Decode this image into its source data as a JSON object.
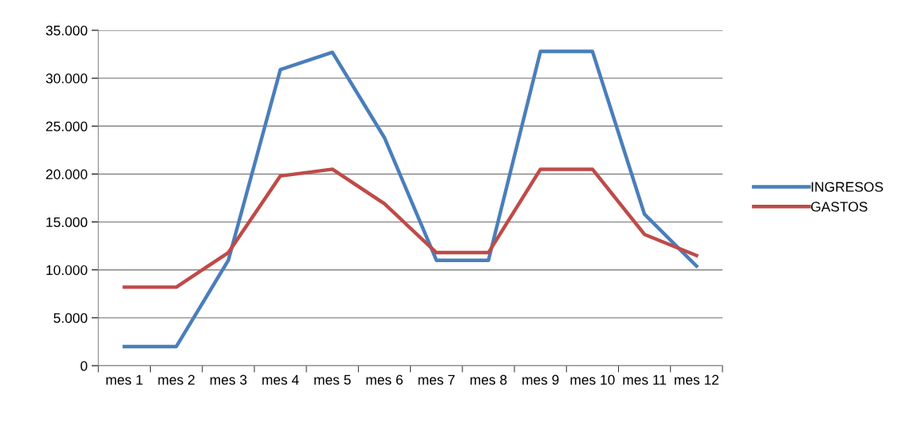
{
  "chart_data": {
    "type": "line",
    "categories": [
      "mes 1",
      "mes 2",
      "mes 3",
      "mes 4",
      "mes 5",
      "mes 6",
      "mes 7",
      "mes 8",
      "mes 9",
      "mes 10",
      "mes 11",
      "mes 12"
    ],
    "series": [
      {
        "name": "INGRESOS",
        "color": "#4a7ebb",
        "values": [
          2000,
          2000,
          11000,
          30900,
          32700,
          23800,
          11000,
          11000,
          32800,
          32800,
          15800,
          10400
        ]
      },
      {
        "name": "GASTOS",
        "color": "#be4b48",
        "values": [
          8200,
          8200,
          11800,
          19800,
          20500,
          16900,
          11800,
          11800,
          20500,
          20500,
          13700,
          11500
        ]
      }
    ],
    "ylim": [
      0,
      35000
    ],
    "yticks": [
      {
        "value": 0,
        "label": "0"
      },
      {
        "value": 5000,
        "label": "5.000"
      },
      {
        "value": 10000,
        "label": "10.000"
      },
      {
        "value": 15000,
        "label": "15.000"
      },
      {
        "value": 20000,
        "label": "20.000"
      },
      {
        "value": 25000,
        "label": "25.000"
      },
      {
        "value": 30000,
        "label": "30.000"
      },
      {
        "value": 35000,
        "label": "35.000"
      }
    ],
    "grid": "y",
    "legend": "right",
    "marker": "none",
    "line_style": "solid"
  }
}
